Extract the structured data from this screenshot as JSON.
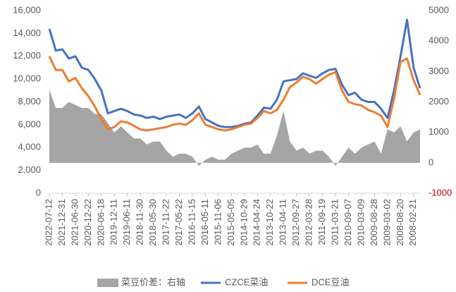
{
  "chart_data": {
    "type": "line",
    "categories": [
      "2022-07-12",
      null,
      "2021-12-31",
      null,
      "2021-06-30",
      null,
      "2020-12-22",
      null,
      "2020-06-18",
      null,
      "2019-12-11",
      null,
      "2019-06-11",
      null,
      "2018-11-30",
      null,
      "2018-05-30",
      null,
      "2017-11-22",
      null,
      "2017-05-22",
      null,
      "2016-11-15",
      null,
      "2016-05-11",
      null,
      "2015-11-06",
      null,
      "2015-05-05",
      null,
      "2014-10-29",
      null,
      "2014-04-24",
      null,
      "2013-10-22",
      null,
      "2013-04-11",
      null,
      "2012-09-27",
      null,
      "2012-03-28",
      null,
      "2011-09-19",
      null,
      "2011-03-21",
      null,
      "2010-09-07",
      null,
      "2010-03-09",
      null,
      "2009-08-28",
      null,
      "2009-03-02",
      null,
      "2008-08-20",
      null,
      "2008-02-21",
      null
    ],
    "series": [
      {
        "name": "菜豆价差：右轴",
        "color": "#a5a5a5",
        "kind": "area",
        "axis": "y2",
        "values": [
          2400,
          1800,
          1800,
          2000,
          1900,
          1800,
          1800,
          1600,
          1600,
          1300,
          1000,
          1200,
          1000,
          800,
          800,
          600,
          700,
          700,
          400,
          200,
          300,
          300,
          200,
          -100,
          100,
          200,
          100,
          100,
          300,
          400,
          500,
          500,
          600,
          300,
          300,
          900,
          1700,
          700,
          400,
          500,
          300,
          400,
          400,
          200,
          -100,
          200,
          500,
          300,
          500,
          600,
          700,
          300,
          1100,
          1000,
          1200,
          700,
          1000,
          1100
        ]
      },
      {
        "name": "CZCE菜油",
        "color": "#4472c4",
        "kind": "line",
        "values": [
          14400,
          12500,
          12600,
          11800,
          12000,
          11000,
          10800,
          10000,
          9000,
          7000,
          7200,
          7400,
          7200,
          6900,
          6800,
          6600,
          6700,
          6500,
          6700,
          6800,
          6900,
          6600,
          7000,
          7600,
          6500,
          6200,
          5900,
          5800,
          5800,
          5900,
          6100,
          6200,
          6800,
          7500,
          7400,
          8200,
          9800,
          9900,
          10000,
          10500,
          10300,
          10100,
          10500,
          10800,
          10900,
          9500,
          8600,
          8800,
          8200,
          8000,
          8000,
          7400,
          6600,
          9000,
          12000,
          15200,
          11000,
          9200
        ]
      },
      {
        "name": "DCE豆油",
        "color": "#ed7d31",
        "kind": "line",
        "values": [
          12000,
          10800,
          10800,
          9800,
          10100,
          9200,
          8500,
          7600,
          6500,
          5600,
          5800,
          6300,
          6200,
          5900,
          5600,
          5500,
          5600,
          5700,
          5800,
          6000,
          6100,
          6000,
          6400,
          7000,
          6000,
          5800,
          5600,
          5500,
          5600,
          5800,
          6000,
          6100,
          6600,
          7200,
          7000,
          7300,
          8200,
          9300,
          9700,
          10200,
          10000,
          9600,
          10000,
          10400,
          10600,
          9000,
          8000,
          7800,
          7700,
          7300,
          7100,
          6800,
          5800,
          8300,
          11500,
          11800,
          9900,
          8600
        ]
      }
    ],
    "ylim": [
      0,
      16000
    ],
    "yticks": [
      0,
      {
        "value": 2000,
        "label": "2,000"
      },
      {
        "value": 4000,
        "label": "4,000"
      },
      {
        "value": 6000,
        "label": "6,000"
      },
      {
        "value": 8000,
        "label": "8,000"
      },
      {
        "value": 10000,
        "label": "10,000"
      },
      {
        "value": 12000,
        "label": "12,000"
      },
      {
        "value": 14000,
        "label": "14,000"
      },
      {
        "value": 16000,
        "label": "16,000"
      }
    ],
    "y2lim": [
      -1000,
      5000
    ],
    "y2ticks": [
      -1000,
      0,
      1000,
      2000,
      3000,
      4000,
      5000
    ],
    "y2tick_negative_color": "#c00000",
    "legend": "bottom"
  }
}
